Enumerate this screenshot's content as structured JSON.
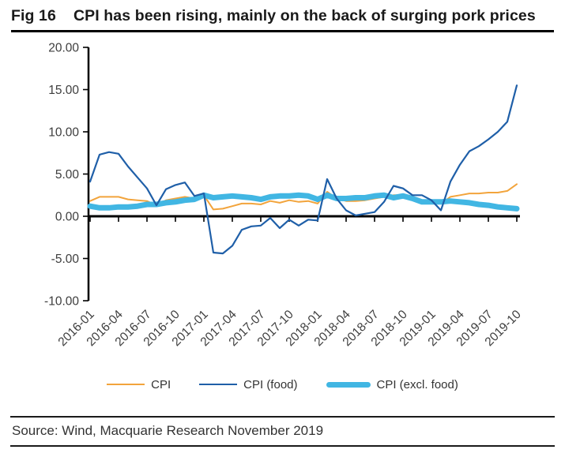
{
  "header": {
    "fig_label": "Fig 16",
    "title": "CPI has been rising, mainly on the back of surging pork prices"
  },
  "legend": [
    {
      "label": "CPI",
      "color": "#F2A43C",
      "thick": false
    },
    {
      "label": "CPI (food)",
      "color": "#1F5FA8",
      "thick": false
    },
    {
      "label": "CPI (excl. food)",
      "color": "#41B6E3",
      "thick": true
    }
  ],
  "footer": {
    "source": "Source: Wind, Macquarie Research November 2019"
  },
  "chart_data": {
    "type": "line",
    "title": "",
    "xlabel": "",
    "ylabel": "",
    "grid": false,
    "legend_position": "bottom",
    "ylim": [
      -10,
      20
    ],
    "ytick_step": 5,
    "ytick_labels": [
      "20.00",
      "15.00",
      "10.00",
      "5.00",
      "0.00",
      "-5.00",
      "-10.00"
    ],
    "x": [
      "2016-01",
      "2016-02",
      "2016-03",
      "2016-04",
      "2016-05",
      "2016-06",
      "2016-07",
      "2016-08",
      "2016-09",
      "2016-10",
      "2016-11",
      "2016-12",
      "2017-01",
      "2017-02",
      "2017-03",
      "2017-04",
      "2017-05",
      "2017-06",
      "2017-07",
      "2017-08",
      "2017-09",
      "2017-10",
      "2017-11",
      "2017-12",
      "2018-01",
      "2018-02",
      "2018-03",
      "2018-04",
      "2018-05",
      "2018-06",
      "2018-07",
      "2018-08",
      "2018-09",
      "2018-10",
      "2018-11",
      "2018-12",
      "2019-01",
      "2019-02",
      "2019-03",
      "2019-04",
      "2019-05",
      "2019-06",
      "2019-07",
      "2019-08",
      "2019-09",
      "2019-10"
    ],
    "x_tick_labels": [
      "2016-01",
      "2016-04",
      "2016-07",
      "2016-10",
      "2017-01",
      "2017-04",
      "2017-07",
      "2017-10",
      "2018-01",
      "2018-04",
      "2018-07",
      "2018-10",
      "2019-01",
      "2019-04",
      "2019-07",
      "2019-10"
    ],
    "x_tick_every": 3,
    "series": [
      {
        "name": "CPI",
        "color": "#F2A43C",
        "width": 2,
        "values": [
          1.8,
          2.3,
          2.3,
          2.3,
          2.0,
          1.9,
          1.8,
          1.3,
          1.9,
          2.1,
          2.3,
          2.1,
          2.5,
          0.8,
          0.9,
          1.2,
          1.5,
          1.5,
          1.4,
          1.8,
          1.6,
          1.9,
          1.7,
          1.8,
          1.5,
          2.9,
          2.1,
          1.8,
          1.8,
          1.9,
          2.1,
          2.3,
          2.5,
          2.5,
          2.2,
          1.9,
          1.7,
          1.5,
          2.3,
          2.5,
          2.7,
          2.7,
          2.8,
          2.8,
          3.0,
          3.8
        ]
      },
      {
        "name": "CPI (food)",
        "color": "#1F5FA8",
        "width": 2.2,
        "values": [
          4.1,
          7.3,
          7.6,
          7.4,
          5.9,
          4.6,
          3.3,
          1.3,
          3.2,
          3.7,
          4.0,
          2.4,
          2.7,
          -4.3,
          -4.4,
          -3.5,
          -1.6,
          -1.2,
          -1.1,
          -0.2,
          -1.4,
          -0.4,
          -1.1,
          -0.4,
          -0.5,
          4.4,
          2.1,
          0.7,
          0.1,
          0.3,
          0.5,
          1.7,
          3.6,
          3.3,
          2.5,
          2.5,
          1.9,
          0.7,
          4.1,
          6.1,
          7.7,
          8.3,
          9.1,
          10.0,
          11.2,
          15.5
        ]
      },
      {
        "name": "CPI (excl. food)",
        "color": "#41B6E3",
        "width": 7,
        "values": [
          1.2,
          1.0,
          1.0,
          1.1,
          1.1,
          1.2,
          1.4,
          1.4,
          1.6,
          1.7,
          1.9,
          2.0,
          2.5,
          2.2,
          2.3,
          2.4,
          2.3,
          2.2,
          2.0,
          2.3,
          2.4,
          2.4,
          2.5,
          2.4,
          2.0,
          2.5,
          2.1,
          2.1,
          2.2,
          2.2,
          2.4,
          2.5,
          2.2,
          2.4,
          2.1,
          1.7,
          1.7,
          1.7,
          1.8,
          1.7,
          1.6,
          1.4,
          1.3,
          1.1,
          1.0,
          0.9
        ]
      }
    ]
  }
}
